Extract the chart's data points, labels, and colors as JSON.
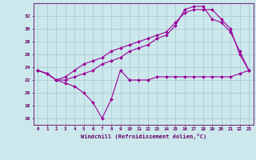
{
  "background_color": "#cce8ec",
  "grid_color": "#aaccd4",
  "line_color": "#990099",
  "xlabel": "Windchill (Refroidissement éolien,°C)",
  "xlabel_color": "#660066",
  "tick_color": "#660066",
  "xlim": [
    -0.5,
    23.5
  ],
  "ylim": [
    15,
    34
  ],
  "yticks": [
    16,
    18,
    20,
    22,
    24,
    26,
    28,
    30,
    32
  ],
  "xticks": [
    0,
    1,
    2,
    3,
    4,
    5,
    6,
    7,
    8,
    9,
    10,
    11,
    12,
    13,
    14,
    15,
    16,
    17,
    18,
    19,
    20,
    21,
    22,
    23
  ],
  "line1_x": [
    0,
    1,
    2,
    3,
    4,
    5,
    6,
    7,
    8,
    9,
    10,
    11,
    12,
    13,
    14,
    15,
    16,
    17,
    18,
    19,
    20,
    21,
    22,
    23
  ],
  "line1_y": [
    23.5,
    23.0,
    22.0,
    21.5,
    21.0,
    20.0,
    18.5,
    16.0,
    19.0,
    23.5,
    22.0,
    22.0,
    22.0,
    22.5,
    22.5,
    22.5,
    22.5,
    22.5,
    22.5,
    22.5,
    22.5,
    22.5,
    23.0,
    23.5
  ],
  "line2_x": [
    0,
    1,
    2,
    3,
    4,
    5,
    6,
    7,
    8,
    9,
    10,
    11,
    12,
    13,
    14,
    15,
    16,
    17,
    18,
    19,
    20,
    21,
    22,
    23
  ],
  "line2_y": [
    23.5,
    23.0,
    22.0,
    22.0,
    22.5,
    23.0,
    23.5,
    24.5,
    25.0,
    25.5,
    26.5,
    27.0,
    27.5,
    28.5,
    29.0,
    30.5,
    33.0,
    33.5,
    33.5,
    31.5,
    31.0,
    29.5,
    26.5,
    23.5
  ],
  "line3_x": [
    0,
    1,
    2,
    3,
    4,
    5,
    6,
    7,
    8,
    9,
    10,
    11,
    12,
    13,
    14,
    15,
    16,
    17,
    18,
    19,
    20,
    21,
    22,
    23
  ],
  "line3_y": [
    23.5,
    23.0,
    22.0,
    22.5,
    23.5,
    24.5,
    25.0,
    25.5,
    26.5,
    27.0,
    27.5,
    28.0,
    28.5,
    29.0,
    29.5,
    31.0,
    32.5,
    33.0,
    33.0,
    33.0,
    31.5,
    30.0,
    26.0,
    23.5
  ]
}
